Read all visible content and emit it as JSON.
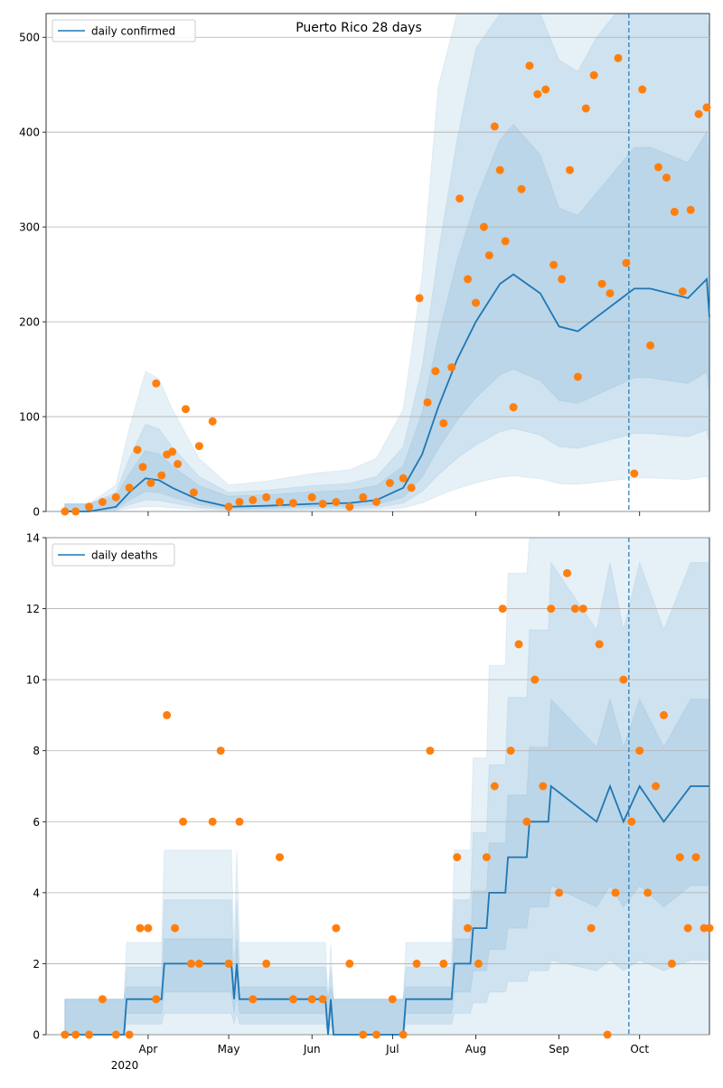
{
  "chart_data": [
    {
      "type": "line",
      "title": "Puerto Rico 28 days",
      "ylim": [
        0,
        525
      ],
      "yticks": [
        0,
        100,
        200,
        300,
        400,
        500
      ],
      "xticks": [
        "Apr",
        "May",
        "Jun",
        "Jul",
        "Aug",
        "Sep",
        "Oct"
      ],
      "x_year_label": "2020",
      "grid": "horizontal",
      "legend": "top-left",
      "vline_label": "",
      "series": [
        {
          "name": "daily confirmed",
          "color": "#1f77b4",
          "x": [
            "2020-03-01",
            "2020-03-10",
            "2020-03-20",
            "2020-03-25",
            "2020-03-31",
            "2020-04-05",
            "2020-04-10",
            "2020-04-20",
            "2020-05-01",
            "2020-05-15",
            "2020-06-01",
            "2020-06-15",
            "2020-06-25",
            "2020-07-05",
            "2020-07-12",
            "2020-07-18",
            "2020-07-25",
            "2020-08-01",
            "2020-08-10",
            "2020-08-15",
            "2020-08-25",
            "2020-09-01",
            "2020-09-08",
            "2020-09-15",
            "2020-09-22",
            "2020-09-29",
            "2020-10-05",
            "2020-10-12",
            "2020-10-19",
            "2020-10-26",
            "2020-10-27"
          ],
          "y": [
            0,
            0,
            5,
            20,
            35,
            33,
            25,
            12,
            5,
            6,
            8,
            9,
            12,
            25,
            60,
            110,
            160,
            200,
            240,
            250,
            230,
            195,
            190,
            205,
            220,
            235,
            235,
            230,
            225,
            245,
            205
          ]
        }
      ],
      "observed": {
        "color": "#ff7f0e",
        "x": [
          "2020-03-01",
          "2020-03-05",
          "2020-03-10",
          "2020-03-15",
          "2020-03-20",
          "2020-03-25",
          "2020-03-28",
          "2020-03-30",
          "2020-04-02",
          "2020-04-04",
          "2020-04-06",
          "2020-04-08",
          "2020-04-10",
          "2020-04-12",
          "2020-04-15",
          "2020-04-18",
          "2020-04-20",
          "2020-04-25",
          "2020-05-01",
          "2020-05-05",
          "2020-05-10",
          "2020-05-15",
          "2020-05-20",
          "2020-05-25",
          "2020-06-01",
          "2020-06-05",
          "2020-06-10",
          "2020-06-15",
          "2020-06-20",
          "2020-06-25",
          "2020-06-30",
          "2020-07-05",
          "2020-07-08",
          "2020-07-11",
          "2020-07-14",
          "2020-07-17",
          "2020-07-20",
          "2020-07-23",
          "2020-07-26",
          "2020-07-29",
          "2020-08-01",
          "2020-08-04",
          "2020-08-06",
          "2020-08-08",
          "2020-08-10",
          "2020-08-12",
          "2020-08-15",
          "2020-08-18",
          "2020-08-21",
          "2020-08-24",
          "2020-08-27",
          "2020-08-30",
          "2020-09-02",
          "2020-09-05",
          "2020-09-08",
          "2020-09-11",
          "2020-09-14",
          "2020-09-17",
          "2020-09-20",
          "2020-09-23",
          "2020-09-26",
          "2020-09-29",
          "2020-10-02",
          "2020-10-05",
          "2020-10-08",
          "2020-10-11",
          "2020-10-14",
          "2020-10-17",
          "2020-10-20",
          "2020-10-23",
          "2020-10-26"
        ],
        "y": [
          0,
          0,
          5,
          10,
          15,
          25,
          65,
          47,
          30,
          135,
          38,
          60,
          63,
          50,
          108,
          20,
          69,
          95,
          5,
          10,
          12,
          15,
          10,
          9,
          15,
          8,
          10,
          5,
          15,
          10,
          30,
          35,
          25,
          225,
          115,
          148,
          93,
          152,
          330,
          245,
          220,
          300,
          270,
          406,
          360,
          285,
          110,
          340,
          470,
          440,
          445,
          260,
          245,
          360,
          142,
          425,
          460,
          240,
          230,
          478,
          262,
          40,
          445,
          175,
          363,
          352,
          316,
          232,
          318,
          419,
          426
        ]
      },
      "vline_date": "2020-09-27"
    },
    {
      "type": "line",
      "title": "",
      "ylim": [
        0,
        14
      ],
      "yticks": [
        0,
        2,
        4,
        6,
        8,
        10,
        12,
        14
      ],
      "xticks": [
        "Apr",
        "May",
        "Jun",
        "Jul",
        "Aug",
        "Sep",
        "Oct"
      ],
      "x_year_label": "2020",
      "grid": "horizontal",
      "legend": "top-left",
      "series": [
        {
          "name": "daily deaths",
          "color": "#1f77b4",
          "x": [
            "2020-03-01",
            "2020-03-23",
            "2020-03-24",
            "2020-04-06",
            "2020-04-07",
            "2020-04-17",
            "2020-04-18",
            "2020-05-02",
            "2020-05-03",
            "2020-05-04",
            "2020-05-05",
            "2020-06-06",
            "2020-06-07",
            "2020-06-08",
            "2020-06-09",
            "2020-07-05",
            "2020-07-06",
            "2020-07-23",
            "2020-07-24",
            "2020-07-30",
            "2020-07-31",
            "2020-08-05",
            "2020-08-06",
            "2020-08-12",
            "2020-08-13",
            "2020-08-20",
            "2020-08-21",
            "2020-08-28",
            "2020-08-29",
            "2020-09-15",
            "2020-09-20",
            "2020-09-25",
            "2020-10-01",
            "2020-10-10",
            "2020-10-20",
            "2020-10-27"
          ],
          "y": [
            0,
            0,
            1,
            1,
            2,
            2,
            2,
            2,
            1,
            2,
            1,
            1,
            0,
            1,
            0,
            0,
            1,
            1,
            2,
            2,
            3,
            3,
            4,
            4,
            5,
            5,
            6,
            6,
            7,
            6,
            7,
            6,
            7,
            6,
            7,
            7
          ]
        }
      ],
      "observed": {
        "color": "#ff7f0e",
        "x": [
          "2020-03-01",
          "2020-03-05",
          "2020-03-10",
          "2020-03-15",
          "2020-03-20",
          "2020-03-25",
          "2020-03-29",
          "2020-04-01",
          "2020-04-04",
          "2020-04-08",
          "2020-04-11",
          "2020-04-14",
          "2020-04-17",
          "2020-04-20",
          "2020-04-25",
          "2020-04-28",
          "2020-05-01",
          "2020-05-05",
          "2020-05-10",
          "2020-05-15",
          "2020-05-20",
          "2020-05-25",
          "2020-06-01",
          "2020-06-05",
          "2020-06-10",
          "2020-06-15",
          "2020-06-20",
          "2020-06-25",
          "2020-07-01",
          "2020-07-05",
          "2020-07-10",
          "2020-07-15",
          "2020-07-20",
          "2020-07-25",
          "2020-07-29",
          "2020-08-02",
          "2020-08-05",
          "2020-08-08",
          "2020-08-11",
          "2020-08-14",
          "2020-08-17",
          "2020-08-20",
          "2020-08-23",
          "2020-08-26",
          "2020-08-29",
          "2020-09-01",
          "2020-09-04",
          "2020-09-07",
          "2020-09-10",
          "2020-09-13",
          "2020-09-16",
          "2020-09-19",
          "2020-09-22",
          "2020-09-25",
          "2020-09-28",
          "2020-10-01",
          "2020-10-04",
          "2020-10-07",
          "2020-10-10",
          "2020-10-13",
          "2020-10-16",
          "2020-10-19",
          "2020-10-22",
          "2020-10-25",
          "2020-10-27"
        ],
        "y": [
          0,
          0,
          0,
          1,
          0,
          0,
          3,
          3,
          1,
          9,
          3,
          6,
          2,
          2,
          6,
          8,
          2,
          6,
          1,
          2,
          5,
          1,
          1,
          1,
          3,
          2,
          0,
          0,
          1,
          0,
          2,
          8,
          2,
          5,
          3,
          2,
          5,
          7,
          12,
          8,
          11,
          6,
          10,
          7,
          12,
          4,
          13,
          12,
          12,
          3,
          11,
          0,
          4,
          10,
          6,
          8,
          4,
          7,
          9,
          2,
          5,
          3,
          5,
          3,
          3
        ]
      },
      "vline_date": "2020-09-27"
    }
  ]
}
